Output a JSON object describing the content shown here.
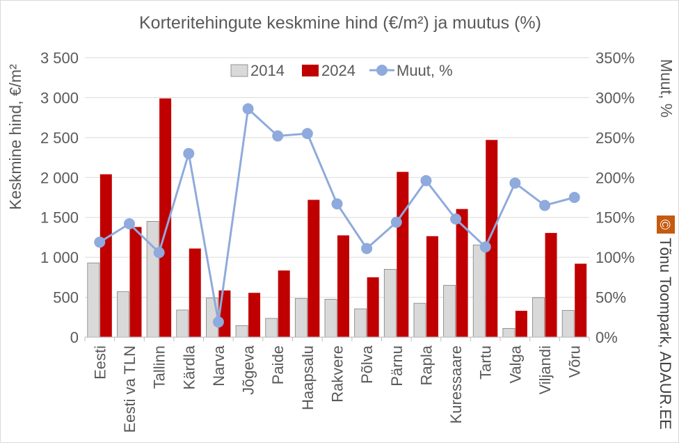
{
  "chart_data": {
    "type": "bar",
    "title": "Korteritehingute keskmine hind (€/m²) ja muutus (%)",
    "ylabel": "Keskmine hind, €/m²",
    "y2label": "Muut, %",
    "ylim": [
      0,
      3500
    ],
    "y2lim": [
      0,
      350
    ],
    "yticks": [
      "0",
      "500",
      "1 000",
      "1 500",
      "2 000",
      "2 500",
      "3 000",
      "3 500"
    ],
    "y2ticks": [
      "0%",
      "50%",
      "100%",
      "150%",
      "200%",
      "250%",
      "300%",
      "350%"
    ],
    "grid": true,
    "legend_position": "top",
    "categories": [
      "Eesti",
      "Eesti va TLN",
      "Tallinn",
      "Kärdla",
      "Narva",
      "Jõgeva",
      "Paide",
      "Haapsalu",
      "Rakvere",
      "Põlva",
      "Pärnu",
      "Rapla",
      "Kuressaare",
      "Tartu",
      "Valga",
      "Viljandi",
      "Võru"
    ],
    "series": [
      {
        "name": "2014",
        "type": "bar",
        "color": "#d9d9d9",
        "edge": "#7f7f7f",
        "values": [
          930,
          570,
          1450,
          340,
          490,
          145,
          235,
          485,
          475,
          355,
          850,
          425,
          650,
          1155,
          110,
          495,
          335
        ]
      },
      {
        "name": "2024",
        "type": "bar",
        "color": "#c00000",
        "values": [
          2040,
          1380,
          2990,
          1110,
          585,
          555,
          835,
          1720,
          1275,
          750,
          2070,
          1265,
          1605,
          2470,
          330,
          1305,
          920
        ]
      },
      {
        "name": "Muut, %",
        "type": "line",
        "axis": "secondary",
        "color": "#8faadc",
        "values": [
          119,
          142,
          106,
          230,
          19,
          286,
          252,
          255,
          167,
          111,
          144,
          196,
          148,
          113,
          193,
          165,
          175
        ]
      }
    ]
  },
  "watermark": {
    "text": "Tõnu Toompark, ADAUR.EE",
    "symbol": "©",
    "color": "#c55a11"
  }
}
